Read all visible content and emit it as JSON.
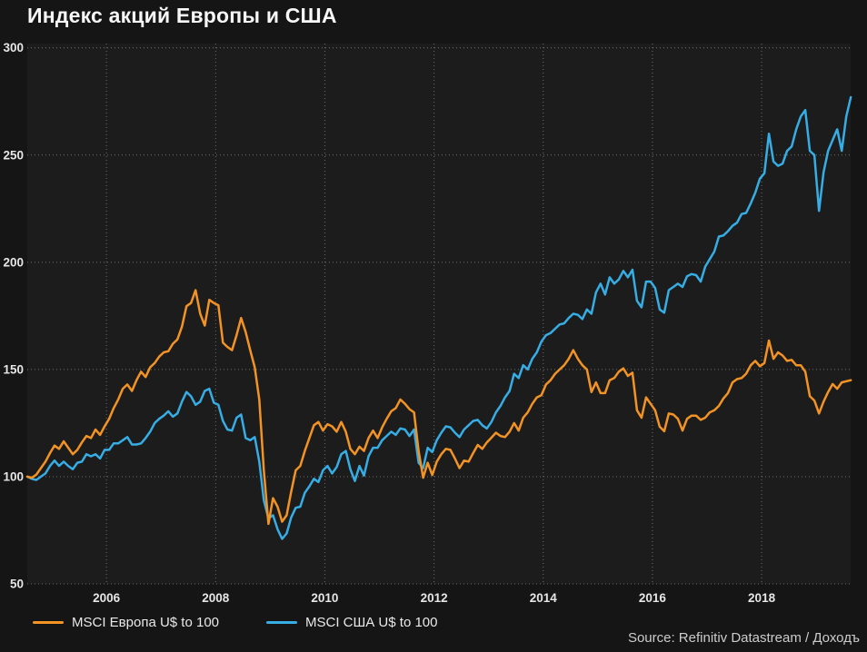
{
  "title": "Индекс акций Европы и США",
  "source": "Source: Refinitiv Datastream / Доходъ",
  "colors": {
    "background": "#151515",
    "plot_background": "#1c1c1c",
    "gridline": "#8a8a8a",
    "tick_label": "#e6e6e6",
    "title_text": "#f7f7f7",
    "europe_line": "#f39324",
    "usa_line": "#36ade4"
  },
  "legend": {
    "items": [
      {
        "label": "MSCI Европа U$ to 100",
        "color": "#f39324"
      },
      {
        "label": "MSCI США U$ to 100",
        "color": "#36ade4"
      }
    ]
  },
  "chart_data": {
    "type": "line",
    "title": "Индекс акций Европы и США",
    "xlabel": "",
    "ylabel": "",
    "grid": "dotted",
    "legend_position": "bottom-left",
    "x_unit": "year (monthly points, Jun 2004 – Jul 2019)",
    "x_start": 2004.55,
    "x_step": 0.0833333,
    "xlim": [
      2004.55,
      2019.63
    ],
    "ylim": [
      50,
      302
    ],
    "y_ticks": [
      50,
      100,
      150,
      200,
      250,
      300
    ],
    "x_ticks": [
      2006,
      2008,
      2010,
      2012,
      2014,
      2016,
      2018
    ],
    "series": [
      {
        "name": "MSCI Европа U$ to 100",
        "color": "#f39324",
        "values": [
          100,
          99.5,
          101,
          104,
          107,
          111,
          114.5,
          113,
          116.5,
          113.5,
          110.5,
          112.5,
          116,
          119,
          118,
          122,
          119.5,
          123.5,
          127,
          132,
          136,
          141,
          143,
          140,
          145,
          149,
          146.5,
          151,
          153,
          156,
          158,
          158.5,
          162,
          164,
          170,
          179.5,
          181,
          187,
          176,
          170.5,
          182.5,
          181,
          180,
          162.5,
          160.5,
          159,
          166,
          174,
          167.5,
          159,
          151,
          136,
          103,
          78,
          90,
          86,
          79,
          82,
          93,
          103,
          105,
          112,
          118,
          124,
          125.5,
          121.5,
          124.5,
          123.5,
          121,
          125.5,
          121,
          113,
          110.5,
          114,
          112,
          118,
          121.5,
          118,
          123,
          127,
          130.5,
          132,
          136,
          134,
          131.5,
          130,
          112,
          99.5,
          106.5,
          100.8,
          107,
          110.5,
          113,
          112.5,
          108.5,
          104,
          107.5,
          107,
          111,
          114.8,
          113,
          116,
          118.2,
          120.5,
          119,
          118.5,
          121,
          125,
          121.5,
          127.5,
          130,
          134,
          137,
          138,
          143,
          145,
          148,
          150,
          152,
          155,
          159,
          155,
          152,
          150,
          139.5,
          144,
          139,
          139,
          145,
          146,
          149,
          150.5,
          147,
          148.5,
          131,
          127.5,
          137,
          134,
          131,
          123.3,
          121.2,
          129.5,
          129,
          127,
          121.5,
          127,
          128.5,
          128.5,
          126.5,
          127.5,
          130,
          131,
          133,
          136.5,
          139,
          144,
          145.5,
          146,
          148,
          152,
          154,
          151.5,
          153,
          163.5,
          155,
          158,
          156.5,
          154,
          154.5,
          152,
          152,
          149,
          137.5,
          135.5,
          129.5,
          135,
          139.5,
          143.2,
          141,
          144,
          144.5,
          145
        ]
      },
      {
        "name": "MSCI США U$ to 100",
        "color": "#36ade4",
        "values": [
          100,
          99,
          98.5,
          100,
          101.5,
          105,
          107.5,
          105,
          107,
          105,
          103.5,
          106.5,
          107,
          110.5,
          109.5,
          110.5,
          108.5,
          112.5,
          112.5,
          115.5,
          115.5,
          117,
          118.5,
          115,
          115,
          115.5,
          118,
          121,
          125,
          127,
          128.5,
          130.5,
          128,
          129.5,
          135,
          139.5,
          137.5,
          133.5,
          135,
          140,
          141,
          134.5,
          133.5,
          126,
          122,
          121.5,
          127.5,
          129,
          118,
          117,
          118.5,
          107,
          89,
          80.5,
          82,
          75.5,
          71,
          73.5,
          81,
          85.5,
          86,
          92.5,
          95.5,
          99,
          97.5,
          103,
          105,
          101.5,
          104.5,
          110.5,
          112,
          103.5,
          98,
          105,
          100.5,
          109.5,
          113.5,
          113.5,
          117,
          119,
          121,
          119.5,
          122.5,
          122,
          119,
          122,
          106.5,
          104,
          113.5,
          111.5,
          117,
          120.5,
          123.5,
          123,
          120.5,
          118.5,
          122,
          124,
          126,
          126.5,
          124,
          122.5,
          125.5,
          130,
          133,
          137,
          140,
          148,
          146,
          152,
          150,
          155,
          158,
          163,
          166,
          167,
          169,
          171,
          171.5,
          174,
          176,
          175.5,
          173.5,
          178,
          176,
          186,
          190,
          185,
          193,
          190,
          192,
          196,
          193,
          196.5,
          182,
          179,
          191,
          191,
          188,
          178,
          176.5,
          187,
          188.5,
          190,
          188.5,
          193.5,
          194.5,
          194,
          191,
          198,
          201.5,
          205,
          212,
          212.5,
          214.5,
          217,
          218.5,
          222.5,
          223,
          227.5,
          232.5,
          239,
          241.5,
          260,
          247,
          245,
          246,
          252,
          254,
          262,
          268,
          271,
          252,
          250,
          224,
          242,
          252,
          257,
          262,
          252,
          268,
          277
        ]
      }
    ]
  }
}
